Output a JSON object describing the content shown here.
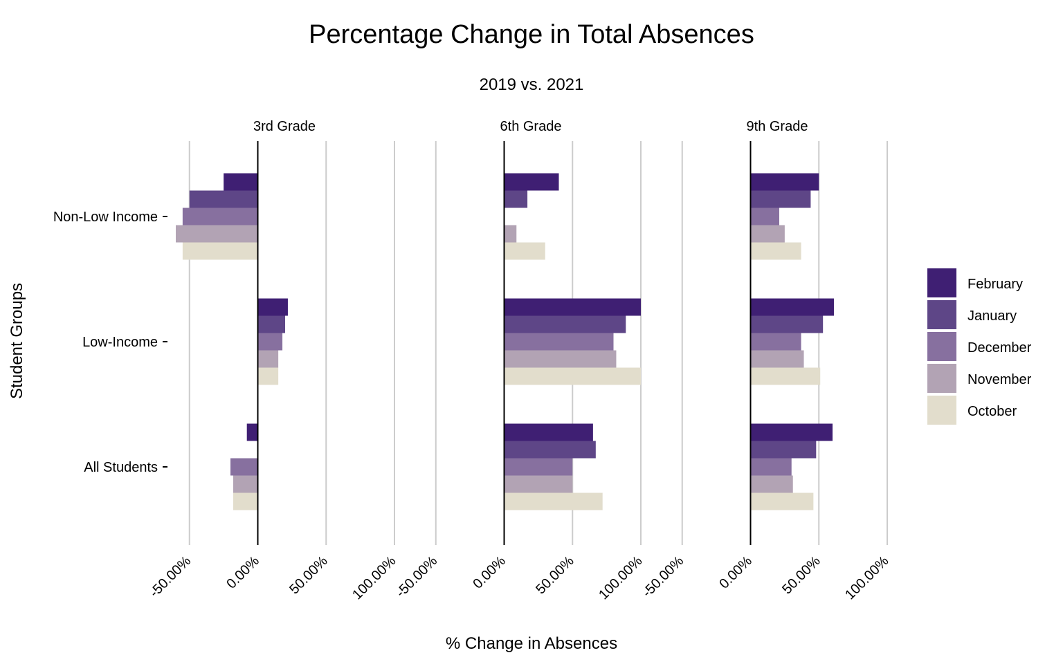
{
  "chart_data": {
    "type": "bar",
    "orientation": "horizontal",
    "title": "Percentage Change in Total Absences",
    "subtitle": "2019 vs. 2021",
    "xlabel": "% Change in Absences",
    "ylabel": "Student Groups",
    "xlim": [
      -60,
      100
    ],
    "xticks": [
      -50,
      0,
      50,
      100
    ],
    "xtick_labels": [
      "-50.00%",
      "0.00%",
      "50.00%",
      "100.00%"
    ],
    "grid": true,
    "legend_placement": "right",
    "categories": [
      "Non-Low Income",
      "Low-Income",
      "All Students"
    ],
    "series_names": [
      "February",
      "January",
      "December",
      "November",
      "October"
    ],
    "series_colors": {
      "February": "#3f1f73",
      "January": "#5e4687",
      "December": "#87709f",
      "November": "#b2a3b4",
      "October": "#e2ddcc"
    },
    "facets": [
      {
        "name": "3rd Grade",
        "values": {
          "Non-Low Income": [
            -25,
            -50,
            -55,
            -60,
            -55
          ],
          "Low-Income": [
            22,
            20,
            18,
            15,
            15
          ],
          "All Students": [
            -8,
            null,
            -20,
            -18,
            -18
          ]
        }
      },
      {
        "name": "6th Grade",
        "values": {
          "Non-Low Income": [
            40,
            17,
            null,
            9,
            30
          ],
          "Low-Income": [
            100,
            89,
            80,
            82,
            100
          ],
          "All Students": [
            65,
            67,
            50,
            50,
            72
          ]
        }
      },
      {
        "name": "9th Grade",
        "values": {
          "Non-Low Income": [
            50,
            44,
            21,
            25,
            37
          ],
          "Low-Income": [
            61,
            53,
            37,
            39,
            51
          ],
          "All Students": [
            60,
            48,
            30,
            31,
            46
          ]
        }
      }
    ]
  }
}
